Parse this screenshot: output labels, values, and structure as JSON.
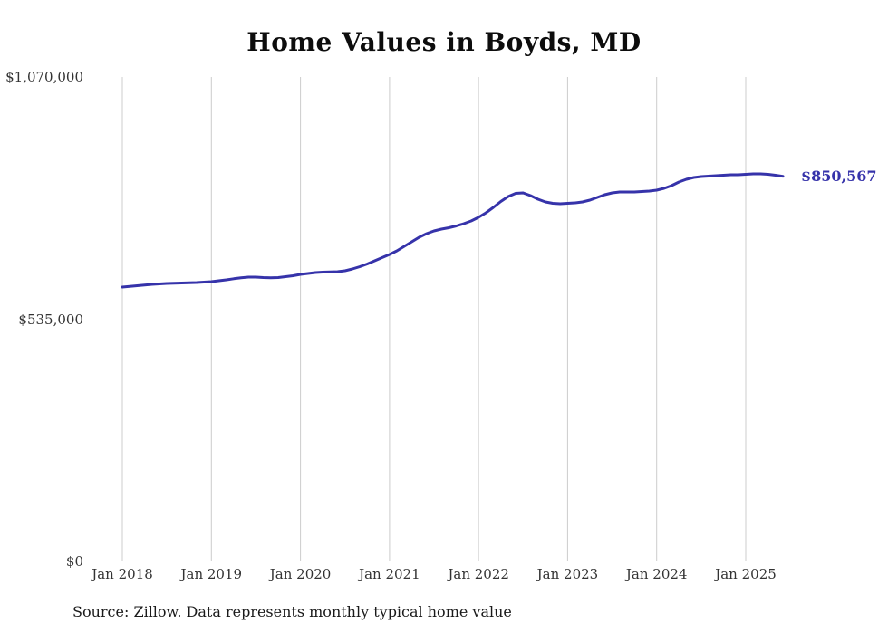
{
  "title": "Home Values in Boyds, MD",
  "source_note": "Source: Zillow. Data represents monthly typical home value",
  "colors": {
    "line": "#3633aa",
    "latest_label": "#3633aa",
    "grid": "#cccccc",
    "axis_text": "#333333",
    "title_text": "#0d0d0d"
  },
  "chart_data": {
    "type": "line",
    "title": "Home Values in Boyds, MD",
    "xlabel": "",
    "ylabel": "",
    "ylim": [
      0,
      1070000
    ],
    "grid": "vertical-only",
    "legend": "none",
    "y_ticks": [
      {
        "value": 0,
        "label": "$0"
      },
      {
        "value": 535000,
        "label": "$535,000"
      },
      {
        "value": 1070000,
        "label": "$1,070,000"
      }
    ],
    "x_ticks": [
      {
        "month_index": 0,
        "label": "Jan 2018"
      },
      {
        "month_index": 12,
        "label": "Jan 2019"
      },
      {
        "month_index": 24,
        "label": "Jan 2020"
      },
      {
        "month_index": 36,
        "label": "Jan 2021"
      },
      {
        "month_index": 48,
        "label": "Jan 2022"
      },
      {
        "month_index": 60,
        "label": "Jan 2023"
      },
      {
        "month_index": 72,
        "label": "Jan 2024"
      },
      {
        "month_index": 84,
        "label": "Jan 2025"
      }
    ],
    "latest_value": 850567,
    "latest_label": "$850,567",
    "series": [
      {
        "name": "Monthly typical home value",
        "start_month": "Jan 2018",
        "values": [
          606000,
          607500,
          609000,
          610500,
          612000,
          613000,
          614000,
          614500,
          615000,
          615500,
          616000,
          617000,
          618000,
          620000,
          622000,
          624500,
          626500,
          628000,
          628000,
          627000,
          626500,
          627000,
          629000,
          631000,
          634000,
          636000,
          638000,
          639000,
          639500,
          640000,
          642000,
          646000,
          651000,
          657000,
          664000,
          671000,
          678000,
          686000,
          696000,
          706000,
          716000,
          724000,
          730000,
          734000,
          737000,
          741000,
          746000,
          752000,
          760000,
          770000,
          782000,
          795000,
          806000,
          813000,
          814000,
          808000,
          800000,
          794000,
          791000,
          790000,
          791000,
          792000,
          794000,
          798000,
          804000,
          810000,
          814000,
          816000,
          816000,
          816000,
          817000,
          818000,
          820000,
          824000,
          830000,
          838000,
          844000,
          848000,
          850000,
          851000,
          852000,
          853000,
          854000,
          854000,
          855000,
          856000,
          856000,
          855000,
          853000,
          850567
        ]
      }
    ]
  }
}
